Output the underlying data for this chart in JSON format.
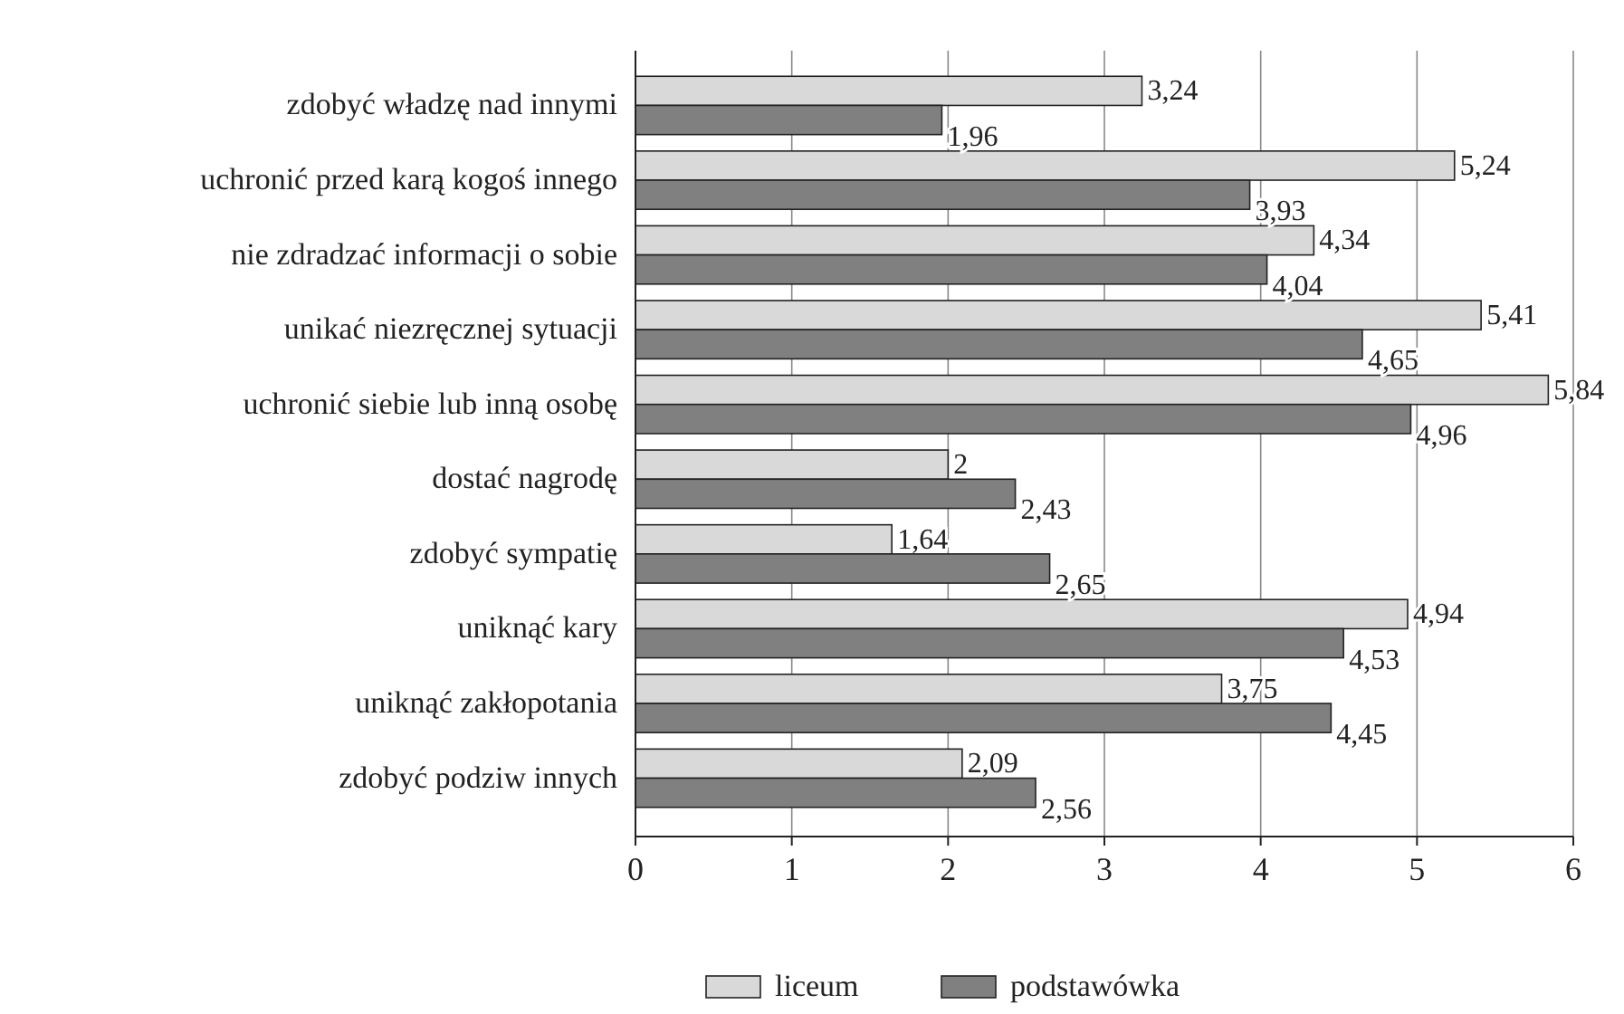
{
  "chart_data": {
    "type": "bar",
    "orientation": "horizontal",
    "categories": [
      "zdobyć władzę nad innymi",
      "uchronić przed karą kogoś innego",
      "nie zdradzać informacji o sobie",
      "unikać niezręcznej sytuacji",
      "uchronić siebie lub inną osobę",
      "dostać nagrodę",
      "zdobyć sympatię",
      "uniknąć kary",
      "uniknąć zakłopotania",
      "zdobyć podziw innych"
    ],
    "series": [
      {
        "name": "liceum",
        "color": "#d9d9d9",
        "values": [
          3.24,
          5.24,
          4.34,
          5.41,
          5.84,
          2,
          1.64,
          4.94,
          3.75,
          2.09
        ],
        "value_labels": [
          "3,24",
          "5,24",
          "4,34",
          "5,41",
          "5,84",
          "2",
          "1,64",
          "4,94",
          "3,75",
          "2,09"
        ]
      },
      {
        "name": "podstawówka",
        "color": "#808080",
        "values": [
          1.96,
          3.93,
          4.04,
          4.65,
          4.96,
          2.43,
          2.65,
          4.53,
          4.45,
          2.56
        ],
        "value_labels": [
          "1,96",
          "3,93",
          "4,04",
          "4,65",
          "4,96",
          "2,43",
          "2,65",
          "4,53",
          "4,45",
          "2,56"
        ]
      }
    ],
    "xlim": [
      0,
      6
    ],
    "xticks": [
      0,
      1,
      2,
      3,
      4,
      5,
      6
    ],
    "grid": "x",
    "legend": "bottom"
  }
}
